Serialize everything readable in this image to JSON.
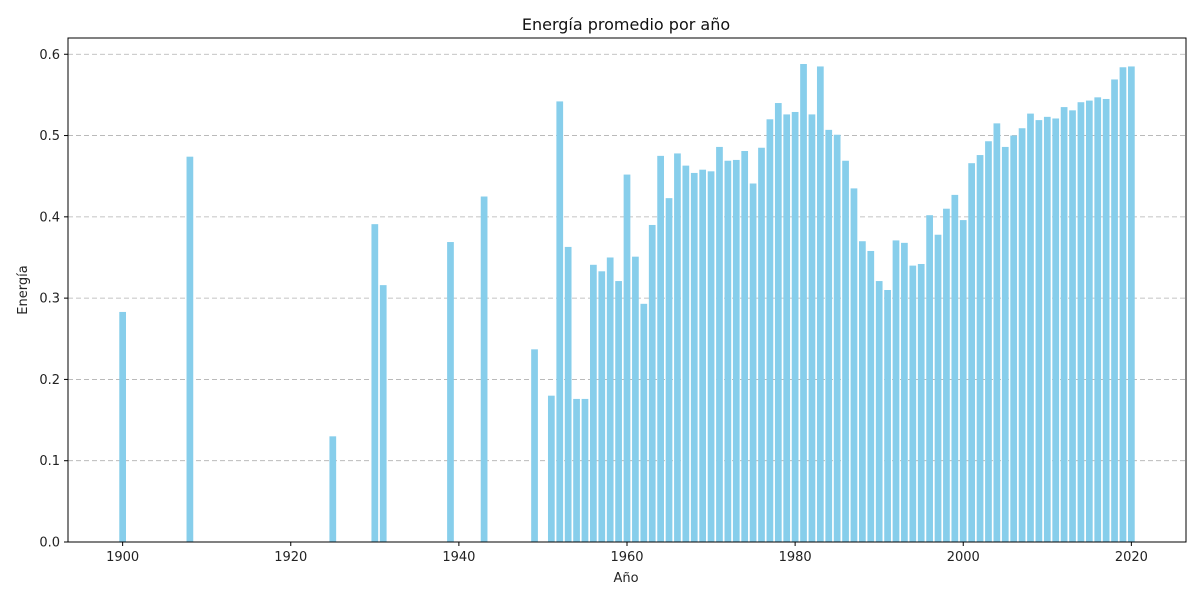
{
  "chart_data": {
    "type": "bar",
    "title": "Energía promedio por año",
    "xlabel": "Año",
    "ylabel": "Energía",
    "xlim": [
      1893.5,
      2026.5
    ],
    "ylim": [
      0,
      0.62
    ],
    "xticks": [
      1900,
      1920,
      1940,
      1960,
      1980,
      2000,
      2020
    ],
    "yticks": [
      0.0,
      0.1,
      0.2,
      0.3,
      0.4,
      0.5,
      0.6
    ],
    "grid": "y-dashed",
    "bar_color": "#87CEEB",
    "x": [
      1900,
      1908,
      1925,
      1930,
      1931,
      1939,
      1943,
      1949,
      1951,
      1952,
      1953,
      1954,
      1955,
      1956,
      1957,
      1958,
      1959,
      1960,
      1961,
      1962,
      1963,
      1964,
      1965,
      1966,
      1967,
      1968,
      1969,
      1970,
      1971,
      1972,
      1973,
      1974,
      1975,
      1976,
      1977,
      1978,
      1979,
      1980,
      1981,
      1982,
      1983,
      1984,
      1985,
      1986,
      1987,
      1988,
      1989,
      1990,
      1991,
      1992,
      1993,
      1994,
      1995,
      1996,
      1997,
      1998,
      1999,
      2000,
      2001,
      2002,
      2003,
      2004,
      2005,
      2006,
      2007,
      2008,
      2009,
      2010,
      2011,
      2012,
      2013,
      2014,
      2015,
      2016,
      2017,
      2018,
      2019,
      2020
    ],
    "values": [
      0.283,
      0.474,
      0.13,
      0.391,
      0.316,
      0.369,
      0.425,
      0.237,
      0.18,
      0.542,
      0.363,
      0.176,
      0.176,
      0.341,
      0.333,
      0.35,
      0.321,
      0.452,
      0.351,
      0.293,
      0.39,
      0.475,
      0.423,
      0.478,
      0.463,
      0.454,
      0.458,
      0.456,
      0.486,
      0.469,
      0.47,
      0.481,
      0.441,
      0.485,
      0.52,
      0.54,
      0.526,
      0.529,
      0.588,
      0.526,
      0.585,
      0.507,
      0.501,
      0.469,
      0.435,
      0.37,
      0.358,
      0.321,
      0.31,
      0.371,
      0.368,
      0.34,
      0.342,
      0.402,
      0.378,
      0.41,
      0.427,
      0.396,
      0.466,
      0.476,
      0.493,
      0.515,
      0.486,
      0.5,
      0.509,
      0.527,
      0.519,
      0.523,
      0.521,
      0.535,
      0.531,
      0.541,
      0.543,
      0.547,
      0.545,
      0.569,
      0.584,
      0.585
    ]
  }
}
